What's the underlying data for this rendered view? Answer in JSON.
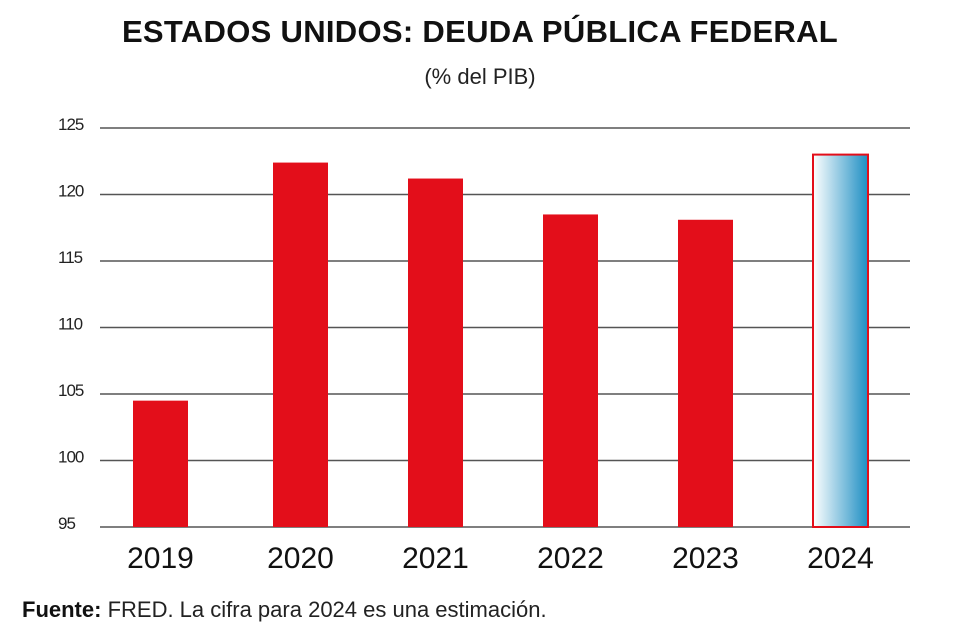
{
  "title": "ESTADOS UNIDOS: DEUDA PÚBLICA FEDERAL",
  "subtitle": "(% del PIB)",
  "source_label": "Fuente:",
  "source_text": " FRED. La cifra para 2024 es una estimación.",
  "chart_data": {
    "type": "bar",
    "title": "ESTADOS UNIDOS: DEUDA PÚBLICA FEDERAL",
    "subtitle": "(% del PIB)",
    "categories": [
      "2019",
      "2020",
      "2021",
      "2022",
      "2023",
      "2024"
    ],
    "values": [
      104.5,
      122.4,
      121.2,
      118.5,
      118.1,
      123.0
    ],
    "estimated": [
      false,
      false,
      false,
      false,
      false,
      true
    ],
    "ylim": [
      95,
      125
    ],
    "yticks": [
      95,
      100,
      105,
      110,
      115,
      120,
      125
    ],
    "grid": true,
    "colors": {
      "bar": "#e30e1a",
      "estimate_fill_start": "#ffffff",
      "estimate_fill_end": "#1e8fc3",
      "estimate_border": "#e30e1a",
      "grid": "#555555"
    }
  }
}
